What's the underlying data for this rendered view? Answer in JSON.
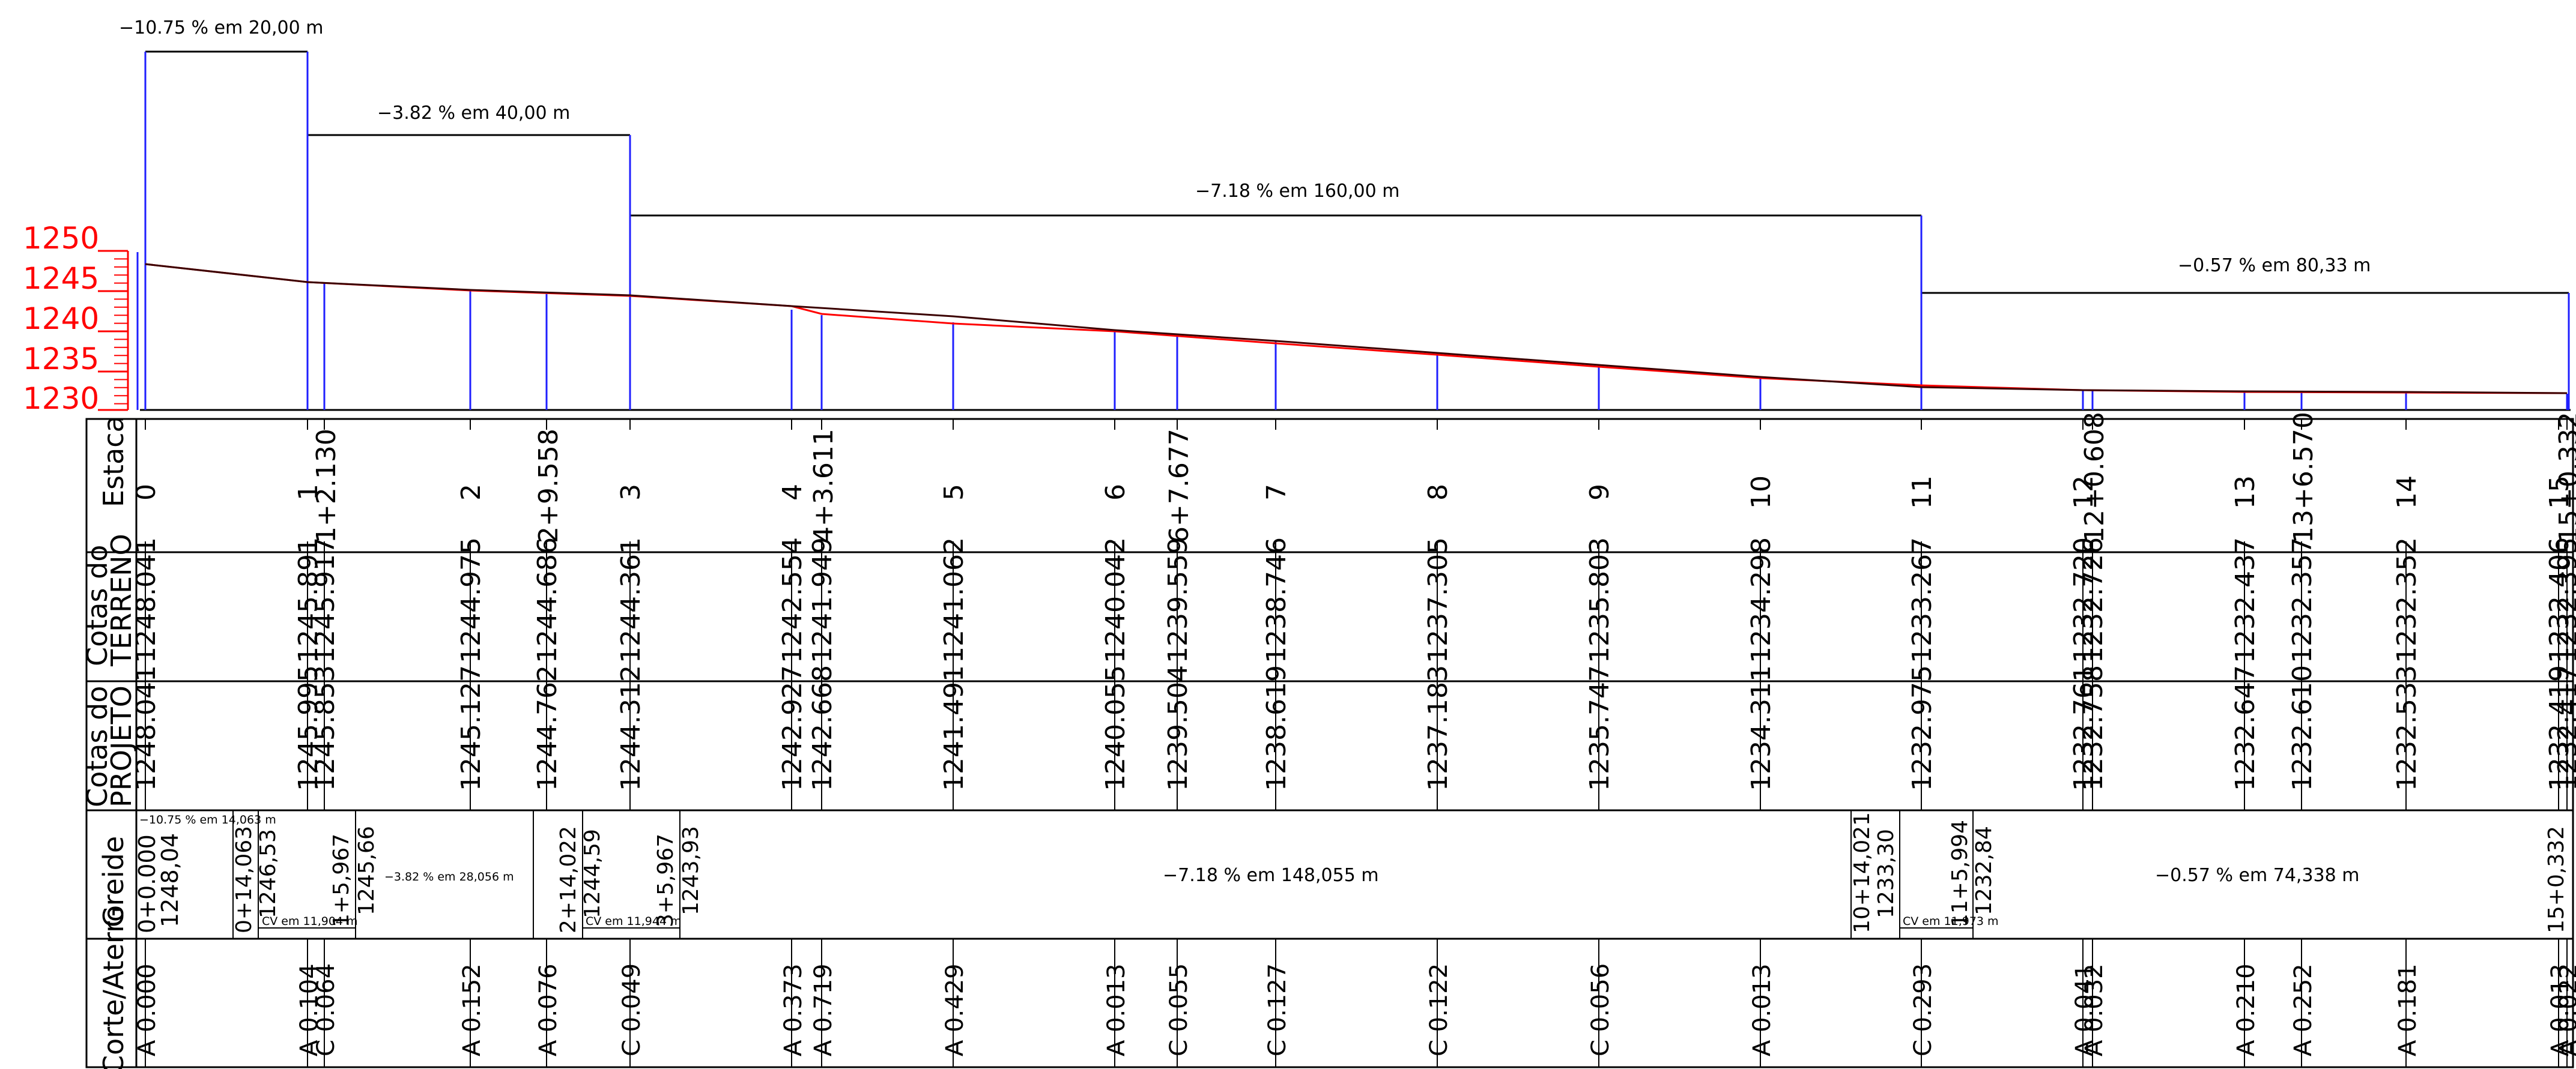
{
  "profile": {
    "grade_labels": [
      "−10.75 % em 20,00 m",
      "−3.82 % em 40,00 m",
      "−7.18 % em 160,00 m",
      "−0.57 % em 80,33 m"
    ],
    "elevation_scale": [
      "1250",
      "1245",
      "1240",
      "1235",
      "1230"
    ]
  },
  "table": {
    "row_titles": {
      "estaca": "Estaca",
      "terreno": [
        "Cotas do",
        "TERRENO"
      ],
      "projeto": [
        "Cotas do",
        "PROJETO"
      ],
      "greide": "Greide",
      "corte": "Corte/Aterro"
    },
    "stations": [
      {
        "label": "0",
        "terreno": "1248.041",
        "projeto": "1248.041",
        "ca": "A 0.000"
      },
      {
        "label": "1",
        "terreno": "1245.891",
        "projeto": "1245.995",
        "ca": "A 0.104"
      },
      {
        "label": "1+2.130",
        "terreno": "1245.917",
        "projeto": "1245.853",
        "ca": "C 0.064"
      },
      {
        "label": "2",
        "terreno": "1244.975",
        "projeto": "1245.127",
        "ca": "A 0.152"
      },
      {
        "label": "2+9.558",
        "terreno": "1244.686",
        "projeto": "1244.762",
        "ca": "A 0.076"
      },
      {
        "label": "3",
        "terreno": "1244.361",
        "projeto": "1244.312",
        "ca": "C 0.049"
      },
      {
        "label": "4",
        "terreno": "1242.554",
        "projeto": "1242.927",
        "ca": "A 0.373"
      },
      {
        "label": "4+3.611",
        "terreno": "1241.949",
        "projeto": "1242.668",
        "ca": "A 0.719"
      },
      {
        "label": "5",
        "terreno": "1241.062",
        "projeto": "1241.491",
        "ca": "A 0.429"
      },
      {
        "label": "6",
        "terreno": "1240.042",
        "projeto": "1240.055",
        "ca": "A 0.013"
      },
      {
        "label": "6+7.677",
        "terreno": "1239.559",
        "projeto": "1239.504",
        "ca": "C 0.055"
      },
      {
        "label": "7",
        "terreno": "1238.746",
        "projeto": "1238.619",
        "ca": "C 0.127"
      },
      {
        "label": "8",
        "terreno": "1237.305",
        "projeto": "1237.183",
        "ca": "C 0.122"
      },
      {
        "label": "9",
        "terreno": "1235.803",
        "projeto": "1235.747",
        "ca": "C 0.056"
      },
      {
        "label": "10",
        "terreno": "1234.298",
        "projeto": "1234.311",
        "ca": "A 0.013"
      },
      {
        "label": "11",
        "terreno": "1233.267",
        "projeto": "1232.975",
        "ca": "C 0.293"
      },
      {
        "label": "12",
        "terreno": "1232.720",
        "projeto": "1232.761",
        "ca": "A 0.041"
      },
      {
        "label": "12+0.608",
        "terreno": "1232.726",
        "projeto": "1232.758",
        "ca": "A 0.032"
      },
      {
        "label": "13",
        "terreno": "1232.437",
        "projeto": "1232.647",
        "ca": "A 0.210"
      },
      {
        "label": "13+6.570",
        "terreno": "1232.357",
        "projeto": "1232.610",
        "ca": "A 0.252"
      },
      {
        "label": "14",
        "terreno": "1232.352",
        "projeto": "1232.533",
        "ca": "A 0.181"
      },
      {
        "label": "15",
        "terreno": "1232.406",
        "projeto": "1232.419",
        "ca": "A 0.013"
      },
      {
        "label": "15+0.332",
        "terreno": "1232.395",
        "projeto": "1232.417",
        "ca": "A 0.022"
      }
    ],
    "greide": {
      "pivs": [
        {
          "station": "0+0.000",
          "elev": "1248,04"
        },
        {
          "station": "0+14,063",
          "elev": "1246,53"
        },
        {
          "station": "1+5,967",
          "elev": "1245,66"
        },
        {
          "station": "2+14,022",
          "elev": "1244,59"
        },
        {
          "station": "3+5,967",
          "elev": "1243,93"
        },
        {
          "station": "10+14,021",
          "elev": "1233,30"
        },
        {
          "station": "11+5,994",
          "elev": "1232,84"
        },
        {
          "station": "15+0,332",
          "elev": ""
        }
      ],
      "segments": [
        "−10.75 % em 14,063 m",
        "−3.82 % em 28,056 m",
        "−7.18 % em 148,055 m",
        "−0.57 % em 74,338 m"
      ],
      "curves": [
        "CV em 11,904 m",
        "CV em 11,944 m",
        "CV em 11,973 m"
      ]
    }
  },
  "colors": {
    "blue": "#1f1fff",
    "red": "#ff0000",
    "black": "#000000",
    "darkred": "#660000"
  }
}
